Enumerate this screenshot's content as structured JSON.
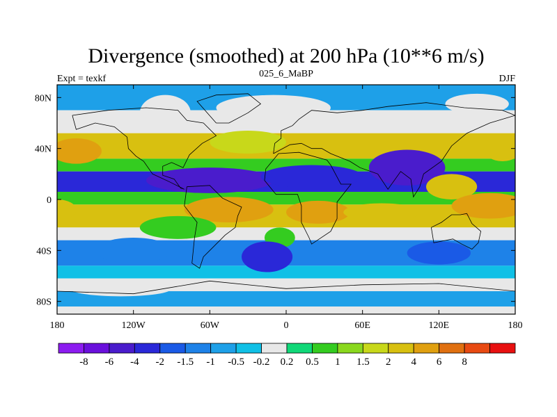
{
  "chart_data": {
    "type": "heatmap",
    "title": "Divergence (smoothed) at 200 hPa (10**6 m/s)",
    "subtitle_left": "Expt = texkf",
    "subtitle_center": "025_6_MaBP",
    "subtitle_right": "DJF",
    "x_ticks": [
      {
        "value": -180,
        "label": "180"
      },
      {
        "value": -120,
        "label": "120W"
      },
      {
        "value": -60,
        "label": "60W"
      },
      {
        "value": 0,
        "label": "0"
      },
      {
        "value": 60,
        "label": "60E"
      },
      {
        "value": 120,
        "label": "120E"
      },
      {
        "value": 180,
        "label": "180"
      }
    ],
    "y_ticks": [
      {
        "value": 80,
        "label": "80N"
      },
      {
        "value": 40,
        "label": "40N"
      },
      {
        "value": 0,
        "label": "0"
      },
      {
        "value": -40,
        "label": "40S"
      },
      {
        "value": -80,
        "label": "80S"
      }
    ],
    "xlim": [
      -180,
      180
    ],
    "ylim": [
      -90,
      90
    ],
    "colorbar_colors": [
      "#8c1cf0",
      "#6a10dc",
      "#4a1ccc",
      "#2a28d8",
      "#1a5ae6",
      "#1e82e8",
      "#1ea0e8",
      "#10c0e6",
      "#e8e8e8",
      "#10d878",
      "#34cc20",
      "#8ad81e",
      "#c8d81a",
      "#d8c010",
      "#e0a010",
      "#e07010",
      "#e84a12",
      "#e81010"
    ],
    "colorbar_labels": [
      "-8",
      "-6",
      "-4",
      "-2",
      "-1.5",
      "-1",
      "-0.5",
      "-0.2",
      "0.2",
      "0.5",
      "1",
      "1.5",
      "2",
      "4",
      "6",
      "8"
    ],
    "bands": [
      {
        "lat": [
          90,
          70
        ],
        "value": -0.6
      },
      {
        "lat": [
          70,
          52
        ],
        "value": 0.0
      },
      {
        "lat": [
          52,
          32
        ],
        "value": 2.0
      },
      {
        "lat": [
          32,
          22
        ],
        "value": 0.5
      },
      {
        "lat": [
          22,
          6
        ],
        "value": -3.0
      },
      {
        "lat": [
          6,
          -4
        ],
        "value": 0.7
      },
      {
        "lat": [
          -4,
          -22
        ],
        "value": 3.5
      },
      {
        "lat": [
          -22,
          -32
        ],
        "value": 0.0
      },
      {
        "lat": [
          -32,
          -52
        ],
        "value": -1.3
      },
      {
        "lat": [
          -52,
          -62
        ],
        "value": -0.4
      },
      {
        "lat": [
          -62,
          -72
        ],
        "value": 0.0
      },
      {
        "lat": [
          -72,
          -84
        ],
        "value": -0.7
      },
      {
        "lat": [
          -84,
          -90
        ],
        "value": 0.0
      }
    ],
    "anomalies": [
      {
        "lon": -95,
        "lat": 68,
        "rlon": 20,
        "rlat": 14,
        "value": 0.0
      },
      {
        "lon": -10,
        "lat": 72,
        "rlon": 45,
        "rlat": 10,
        "value": 0.0
      },
      {
        "lon": 150,
        "lat": 75,
        "rlon": 25,
        "rlat": 8,
        "value": 0.0
      },
      {
        "lon": -165,
        "lat": 38,
        "rlon": 20,
        "rlat": 10,
        "value": 4.0
      },
      {
        "lon": -30,
        "lat": 45,
        "rlon": 30,
        "rlat": 9,
        "value": 1.5
      },
      {
        "lon": 170,
        "lat": 40,
        "rlon": 15,
        "rlat": 10,
        "value": 3.0
      },
      {
        "lon": -60,
        "lat": 15,
        "rlon": 50,
        "rlat": 10,
        "value": -6.0
      },
      {
        "lon": 20,
        "lat": 18,
        "rlon": 40,
        "rlat": 9,
        "value": -4.0
      },
      {
        "lon": 95,
        "lat": 25,
        "rlon": 30,
        "rlat": 14,
        "value": -5.0
      },
      {
        "lon": 130,
        "lat": 10,
        "rlon": 20,
        "rlat": 10,
        "value": 3.0
      },
      {
        "lon": 160,
        "lat": -5,
        "rlon": 30,
        "rlat": 10,
        "value": 5.0
      },
      {
        "lon": -180,
        "lat": -8,
        "rlon": 15,
        "rlat": 8,
        "value": 3.0
      },
      {
        "lon": -45,
        "lat": -8,
        "rlon": 35,
        "rlat": 10,
        "value": 4.5
      },
      {
        "lon": 25,
        "lat": -10,
        "rlon": 25,
        "rlat": 9,
        "value": 4.5
      },
      {
        "lon": 75,
        "lat": -10,
        "rlon": 30,
        "rlat": 7,
        "value": 3.5
      },
      {
        "lon": -5,
        "lat": -30,
        "rlon": 12,
        "rlat": 8,
        "value": 0.8
      },
      {
        "lon": -85,
        "lat": -22,
        "rlon": 30,
        "rlat": 9,
        "value": 0.6
      },
      {
        "lon": -15,
        "lat": -45,
        "rlon": 20,
        "rlat": 12,
        "value": -3.0
      },
      {
        "lon": 120,
        "lat": -42,
        "rlon": 25,
        "rlat": 9,
        "value": -2.0
      },
      {
        "lon": -120,
        "lat": -40,
        "rlon": 30,
        "rlat": 10,
        "value": -1.5
      },
      {
        "lon": -130,
        "lat": -70,
        "rlon": 40,
        "rlat": 6,
        "value": 0.0
      }
    ]
  }
}
